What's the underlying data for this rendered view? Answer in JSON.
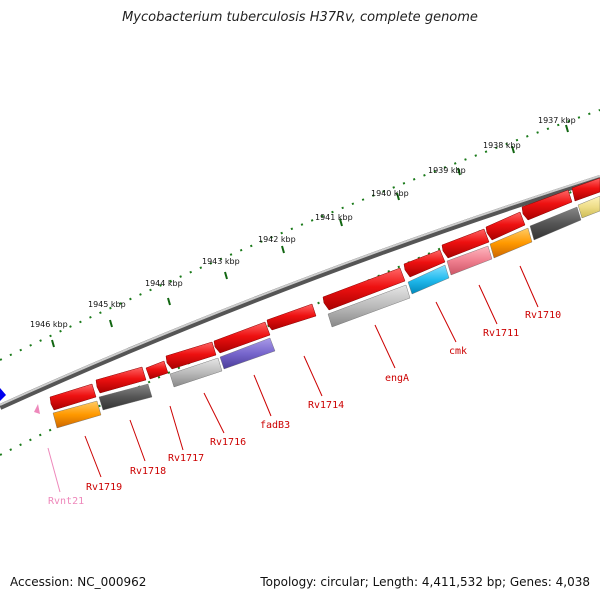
{
  "header": {
    "title": "Mycobacterium tuberculosis H37Rv, complete genome"
  },
  "footer": {
    "accession": "Accession: NC_000962",
    "topology": "Topology: circular; Length: 4,411,532 bp; Genes: 4,038"
  },
  "colors": {
    "red": "#ee1111",
    "gray": "#bbbbbb",
    "dark_gray": "#555555",
    "orange": "#ff9900",
    "purple": "#7766cc",
    "cyan": "#22bbee",
    "pink": "#f08090",
    "khaki": "#eedd88",
    "blue": "#0000ee",
    "rna_pink": "#ee88bb",
    "label_red": "#cc0000",
    "label_pink": "#ee88bb",
    "tick_green": "#116611",
    "backbone": "#777777"
  },
  "kbp_labels": [
    "1937 kbp",
    "1938 kbp",
    "1939 kbp",
    "1940 kbp",
    "1941 kbp",
    "1942 kbp",
    "1943 kbp",
    "1944 kbp",
    "1945 kbp",
    "1946 kbp"
  ],
  "genes": [
    {
      "name": "Rv1710",
      "color": "red"
    },
    {
      "name": "Rv1711",
      "color": "red"
    },
    {
      "name": "cmk",
      "color": "red"
    },
    {
      "name": "engA",
      "color": "red"
    },
    {
      "name": "Rv1714",
      "color": "red"
    },
    {
      "name": "fadB3",
      "color": "red"
    },
    {
      "name": "Rv1716",
      "color": "red"
    },
    {
      "name": "Rv1717",
      "color": "red"
    },
    {
      "name": "Rv1718",
      "color": "red"
    },
    {
      "name": "Rv1719",
      "color": "red"
    },
    {
      "name": "Rvnt21",
      "color": "rna_pink"
    }
  ]
}
